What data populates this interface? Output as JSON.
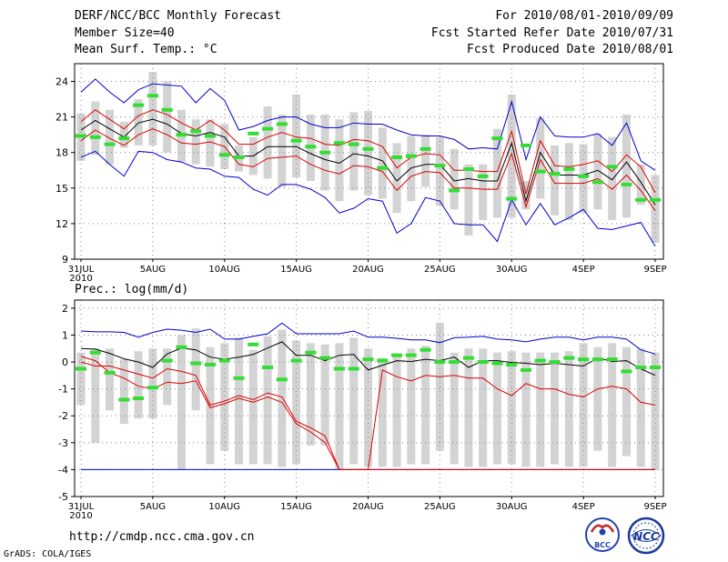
{
  "header": {
    "title": "DERF/NCC/BCC Monthly Forecast",
    "member_size": "Member Size=40",
    "variable": "Mean Surf. Temp.: °C",
    "for_range": "For 2010/08/01-2010/09/09",
    "fcst_started": "Fcst Started Refer Date 2010/07/31",
    "fcst_produced": "Fcst Produced Date 2010/08/01"
  },
  "footer": {
    "url": "http://cmdp.ncc.cma.gov.cn",
    "credit": "GrADS: COLA/IGES",
    "logo_bcc_text": "BCC",
    "logo_ncc_text": "NCC"
  },
  "colors": {
    "box": "#d3d3d3",
    "mean": "#000000",
    "spread": "#dd0000",
    "extreme": "#0000cc",
    "obs": "#33dd33",
    "grid": "#888888"
  },
  "chart_data": [
    {
      "type": "ensemble-box",
      "title": "Mean Surf. Temp.: °C",
      "xlabel": "",
      "ylabel": "",
      "days": 41,
      "x_tick_labels": [
        {
          "day": 0,
          "label": "31JUL",
          "sub": "2010"
        },
        {
          "day": 5,
          "label": "5AUG"
        },
        {
          "day": 10,
          "label": "10AUG"
        },
        {
          "day": 15,
          "label": "15AUG"
        },
        {
          "day": 20,
          "label": "20AUG"
        },
        {
          "day": 25,
          "label": "25AUG"
        },
        {
          "day": 30,
          "label": "30AUG"
        },
        {
          "day": 35,
          "label": "4SEP"
        },
        {
          "day": 40,
          "label": "9SEP"
        }
      ],
      "ylim": [
        9,
        25.5
      ],
      "yticks": [
        9,
        12,
        15,
        18,
        21,
        24
      ],
      "series": [
        {
          "name": "ensemble maximum",
          "values": [
            23.1,
            24.2,
            23.1,
            22.2,
            23.3,
            23.8,
            23.7,
            23.6,
            22.2,
            23.4,
            22.4,
            19.9,
            20.2,
            20.7,
            21.0,
            21.0,
            20.4,
            20.1,
            20.1,
            20.5,
            20.4,
            20.4,
            19.9,
            19.5,
            19.4,
            19.4,
            19.1,
            18.3,
            18.4,
            18.3,
            22.3,
            17.4,
            21.0,
            19.4,
            19.3,
            19.3,
            19.6,
            18.6,
            20.5,
            17.3,
            16.5
          ]
        },
        {
          "name": "mean + spread",
          "values": [
            20.6,
            21.6,
            20.8,
            20.0,
            21.1,
            21.6,
            21.2,
            20.5,
            19.9,
            20.7,
            19.9,
            18.7,
            18.7,
            19.3,
            19.7,
            19.3,
            19.2,
            18.7,
            18.6,
            19.1,
            19.0,
            18.5,
            16.7,
            17.6,
            17.9,
            17.8,
            16.5,
            16.5,
            16.4,
            16.4,
            19.8,
            14.5,
            19.0,
            16.9,
            16.8,
            17.0,
            17.3,
            16.4,
            17.8,
            16.8,
            14.6
          ]
        },
        {
          "name": "ensemble mean",
          "values": [
            19.9,
            20.7,
            20.0,
            19.3,
            20.5,
            20.8,
            20.4,
            19.6,
            19.4,
            19.7,
            19.3,
            17.7,
            17.7,
            18.5,
            18.5,
            18.5,
            17.9,
            17.4,
            17.1,
            17.9,
            17.7,
            17.3,
            15.6,
            16.7,
            17.0,
            17.0,
            15.6,
            15.8,
            15.6,
            15.6,
            18.8,
            13.9,
            18.0,
            16.1,
            16.1,
            16.1,
            16.5,
            15.7,
            17.2,
            15.5,
            13.6
          ]
        },
        {
          "name": "mean - spread",
          "values": [
            19.0,
            19.9,
            19.2,
            18.6,
            19.5,
            20.0,
            19.5,
            18.8,
            18.7,
            18.9,
            18.5,
            17.0,
            16.8,
            17.5,
            17.6,
            17.7,
            17.0,
            16.5,
            16.2,
            16.9,
            16.8,
            16.4,
            14.8,
            16.0,
            16.4,
            16.3,
            15.0,
            15.0,
            14.9,
            14.9,
            17.9,
            13.4,
            17.4,
            15.4,
            15.4,
            15.4,
            15.8,
            14.9,
            16.1,
            14.8,
            13.1
          ]
        },
        {
          "name": "ensemble minimum",
          "values": [
            17.6,
            18.1,
            17.0,
            16.0,
            18.1,
            18.0,
            17.4,
            17.2,
            16.7,
            16.6,
            16.0,
            15.9,
            14.9,
            14.4,
            15.3,
            15.3,
            14.9,
            14.2,
            12.9,
            13.3,
            14.1,
            13.9,
            11.2,
            12.0,
            14.2,
            13.9,
            12.0,
            11.9,
            11.9,
            10.5,
            14.0,
            11.9,
            13.7,
            11.9,
            12.5,
            13.2,
            11.6,
            11.5,
            11.8,
            12.1,
            10.1
          ]
        },
        {
          "name": "box upper",
          "values": [
            21.3,
            22.3,
            21.6,
            20.6,
            22.5,
            24.8,
            24.0,
            21.6,
            20.8,
            20.8,
            20.4,
            18.6,
            19.3,
            21.9,
            21.2,
            22.9,
            21.2,
            21.2,
            20.8,
            21.4,
            21.5,
            20.1,
            18.8,
            19.4,
            19.5,
            19.3,
            18.3,
            17.0,
            17.0,
            20.0,
            22.9,
            15.6,
            20.9,
            18.6,
            18.8,
            18.7,
            19.6,
            19.3,
            21.2,
            17.0,
            16.1
          ]
        },
        {
          "name": "box lower",
          "values": [
            17.3,
            17.8,
            17.0,
            18.4,
            18.6,
            18.6,
            18.0,
            17.2,
            17.0,
            16.8,
            16.6,
            16.4,
            16.1,
            15.8,
            15.1,
            15.9,
            15.6,
            14.8,
            13.9,
            14.8,
            14.4,
            14.1,
            12.9,
            13.9,
            15.1,
            13.5,
            13.2,
            11.0,
            12.3,
            12.5,
            12.5,
            13.2,
            14.1,
            12.7,
            12.3,
            12.9,
            13.2,
            12.3,
            12.5,
            13.6,
            10.4
          ]
        },
        {
          "name": "observed",
          "values": [
            19.4,
            19.3,
            18.7,
            19.2,
            22.0,
            22.8,
            21.6,
            19.5,
            19.8,
            19.4,
            17.8,
            17.6,
            19.6,
            20.0,
            20.4,
            19.0,
            18.5,
            18.0,
            18.8,
            18.7,
            18.3,
            16.7,
            17.6,
            17.7,
            18.3,
            16.9,
            14.8,
            16.6,
            16.0,
            19.2,
            14.1,
            18.6,
            16.4,
            16.2,
            16.6,
            16.0,
            15.5,
            16.8,
            15.3,
            14.0,
            14.0
          ]
        }
      ]
    },
    {
      "type": "ensemble-box",
      "title": "Prec.: log(mm/d)",
      "xlabel": "",
      "ylabel": "",
      "days": 41,
      "x_tick_labels": [
        {
          "day": 0,
          "label": "31JUL",
          "sub": "2010"
        },
        {
          "day": 5,
          "label": "5AUG"
        },
        {
          "day": 10,
          "label": "10AUG"
        },
        {
          "day": 15,
          "label": "15AUG"
        },
        {
          "day": 20,
          "label": "20AUG"
        },
        {
          "day": 25,
          "label": "25AUG"
        },
        {
          "day": 30,
          "label": "30AUG"
        },
        {
          "day": 35,
          "label": "4SEP"
        },
        {
          "day": 40,
          "label": "9SEP"
        }
      ],
      "ylim": [
        -5,
        2.3
      ],
      "yticks": [
        -5,
        -4,
        -3,
        -2,
        -1,
        0,
        1,
        2
      ],
      "series": [
        {
          "name": "ensemble maximum",
          "values": [
            1.15,
            1.12,
            1.12,
            1.1,
            0.92,
            1.1,
            1.22,
            1.18,
            1.1,
            1.22,
            0.85,
            0.85,
            0.95,
            1.05,
            1.45,
            1.05,
            1.05,
            1.05,
            1.05,
            1.15,
            0.92,
            0.92,
            0.88,
            0.82,
            0.82,
            0.72,
            0.9,
            0.92,
            0.95,
            0.85,
            0.82,
            0.75,
            0.85,
            0.92,
            0.92,
            0.82,
            0.92,
            0.92,
            0.85,
            0.45,
            0.3
          ]
        },
        {
          "name": "ensemble mean",
          "values": [
            0.5,
            0.48,
            0.32,
            0.12,
            0.0,
            -0.2,
            0.3,
            0.52,
            0.45,
            0.18,
            0.1,
            0.18,
            0.28,
            0.52,
            0.75,
            0.25,
            0.25,
            0.05,
            0.25,
            0.28,
            -0.3,
            -0.12,
            0.05,
            0.02,
            0.1,
            0.05,
            0.18,
            -0.2,
            0.05,
            0.05,
            -0.02,
            -0.05,
            -0.1,
            -0.05,
            -0.1,
            -0.15,
            0.15,
            0.02,
            0.05,
            -0.25,
            -0.5
          ]
        },
        {
          "name": "mean - spread",
          "values": [
            0.2,
            0.05,
            -0.4,
            -0.6,
            -0.9,
            -1.0,
            -0.75,
            -0.8,
            -0.7,
            -1.7,
            -1.55,
            -1.35,
            -1.5,
            -1.3,
            -1.5,
            -2.3,
            -2.6,
            -3.0,
            -4.0,
            -4.0,
            -4.0,
            -4.0,
            -4.0,
            -4.0,
            -4.0,
            -4.0,
            -4.0,
            -4.0,
            -4.0,
            -4.0,
            -4.0,
            -4.0,
            -4.0,
            -4.0,
            -4.0,
            -4.0,
            -4.0,
            -4.0,
            -4.0,
            -4.0,
            -4.0
          ]
        },
        {
          "name": "mean + spread",
          "values": [
            0.0,
            -0.15,
            -0.15,
            -0.3,
            -0.45,
            -0.6,
            -0.25,
            -0.35,
            -0.5,
            -1.6,
            -1.45,
            -1.25,
            -1.4,
            -1.15,
            -1.3,
            -2.2,
            -2.45,
            -2.75,
            -4.0,
            -4.0,
            -4.0,
            -0.3,
            -0.55,
            -0.7,
            -0.5,
            -0.55,
            -0.5,
            -0.6,
            -0.6,
            -1.0,
            -1.25,
            -0.8,
            -1.0,
            -1.0,
            -1.2,
            -1.3,
            -1.0,
            -0.9,
            -1.0,
            -1.5,
            -1.6
          ]
        },
        {
          "name": "ensemble minimum",
          "values": [
            -4,
            -4,
            -4,
            -4,
            -4,
            -4,
            -4,
            -4,
            -4,
            -4,
            -4,
            -4,
            -4,
            -4,
            -4,
            -4,
            -4,
            -4,
            -4,
            -4,
            -4,
            -4,
            -4,
            -4,
            -4,
            -4,
            -4,
            -4,
            -4,
            -4,
            -4,
            -4,
            -4,
            -4,
            -4,
            -4,
            -4,
            -4,
            -4,
            -4,
            -4
          ]
        },
        {
          "name": "box upper",
          "values": [
            0.35,
            0.5,
            0.5,
            0.1,
            0.4,
            0.5,
            0.5,
            1.0,
            1.25,
            0.55,
            0.7,
            0.9,
            0.45,
            0.95,
            1.2,
            0.8,
            0.7,
            0.65,
            0.7,
            0.9,
            0.5,
            0.15,
            0.2,
            0.5,
            0.6,
            1.45,
            0.35,
            0.5,
            0.5,
            0.35,
            0.4,
            0.35,
            0.35,
            0.35,
            0.4,
            0.7,
            0.55,
            0.7,
            0.55,
            0.5,
            0.35
          ]
        },
        {
          "name": "box lower",
          "values": [
            -1.6,
            -3.0,
            -1.8,
            -2.3,
            -2.1,
            -2.1,
            -1.6,
            -4.0,
            -1.8,
            -3.8,
            -3.3,
            -3.8,
            -3.8,
            -3.8,
            -3.9,
            -3.8,
            -3.1,
            -3.1,
            -4.0,
            -3.8,
            -3.9,
            -3.9,
            -3.9,
            -3.8,
            -3.8,
            -3.3,
            -3.8,
            -3.9,
            -3.9,
            -3.8,
            -3.8,
            -3.9,
            -3.9,
            -3.8,
            -3.9,
            -3.9,
            -3.3,
            -3.9,
            -3.5,
            -3.9,
            -4.0
          ]
        },
        {
          "name": "observed",
          "values": [
            -0.25,
            0.35,
            -0.4,
            -1.4,
            -1.35,
            -0.95,
            0.05,
            0.55,
            -0.05,
            -0.1,
            0.05,
            -0.6,
            0.65,
            -0.2,
            -0.65,
            0.05,
            0.35,
            0.15,
            -0.25,
            -0.25,
            0.1,
            0.05,
            0.25,
            0.25,
            0.45,
            0.0,
            0.0,
            0.15,
            0.0,
            -0.05,
            -0.1,
            -0.3,
            0.05,
            0.0,
            0.15,
            0.1,
            0.1,
            0.1,
            -0.35,
            -0.2,
            -0.2
          ]
        }
      ]
    }
  ]
}
